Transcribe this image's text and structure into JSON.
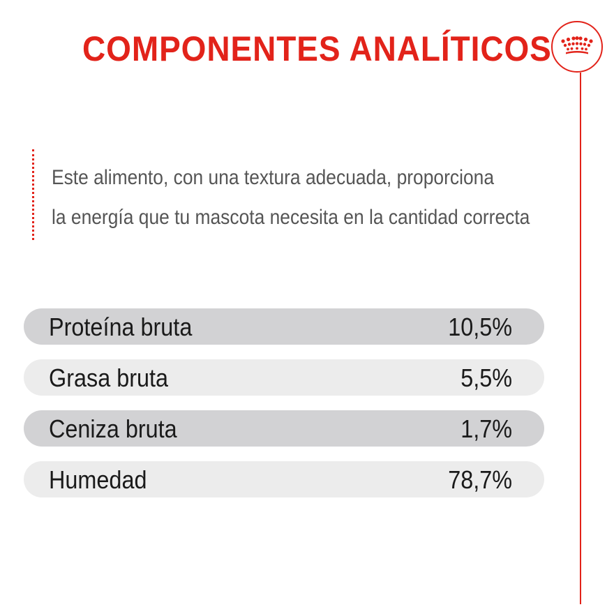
{
  "title": "COMPONENTES ANALÍTICOS",
  "intro_lines": [
    "Este alimento, con una textura adecuada, proporciona",
    "la energía que tu mascota necesita en la cantidad correcta"
  ],
  "nutrients": [
    {
      "name": "Proteína bruta",
      "value": "10,5%"
    },
    {
      "name": "Grasa bruta",
      "value": "5,5%"
    },
    {
      "name": "Ceniza bruta",
      "value": "1,7%"
    },
    {
      "name": "Humedad",
      "value": "78,7%"
    }
  ],
  "brand_icon": "crown-icon",
  "colors": {
    "accent_red": "#e2231a",
    "text_dark": "#1a1a1a",
    "text_grey": "#555555",
    "row_dark": "#d2d2d4",
    "row_light": "#ececec"
  }
}
